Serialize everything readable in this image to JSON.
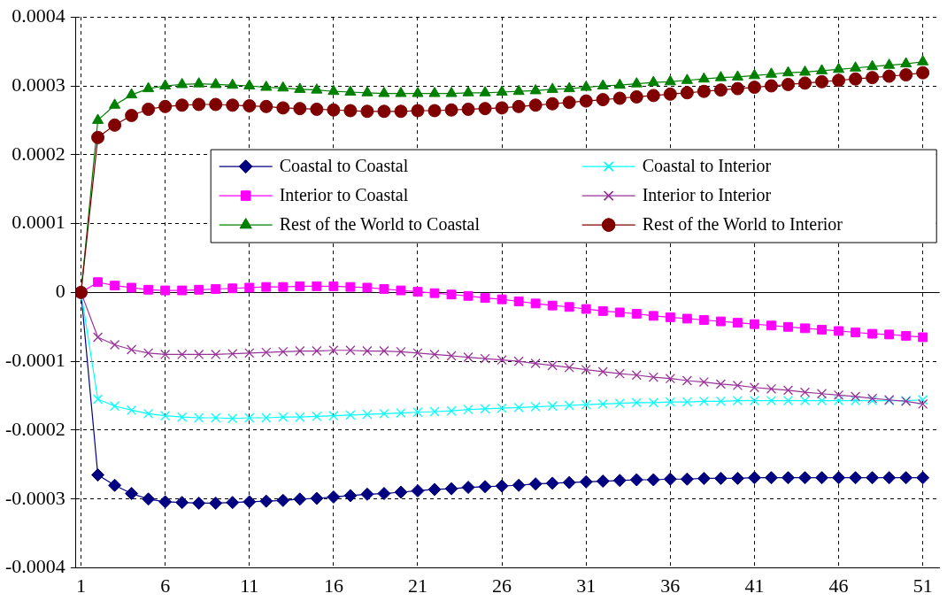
{
  "chart_data": {
    "type": "line",
    "x": [
      1,
      2,
      3,
      4,
      5,
      6,
      7,
      8,
      9,
      10,
      11,
      12,
      13,
      14,
      15,
      16,
      17,
      18,
      19,
      20,
      21,
      22,
      23,
      24,
      25,
      26,
      27,
      28,
      29,
      30,
      31,
      32,
      33,
      34,
      35,
      36,
      37,
      38,
      39,
      40,
      41,
      42,
      43,
      44,
      45,
      46,
      47,
      48,
      49,
      50,
      51
    ],
    "xlim": [
      0.7,
      52
    ],
    "xticks": [
      1,
      6,
      11,
      16,
      21,
      26,
      31,
      36,
      41,
      46,
      51
    ],
    "ylim": [
      -0.0004,
      0.0004
    ],
    "yticks": [
      -0.0004,
      -0.0003,
      -0.0002,
      -0.0001,
      0,
      0.0001,
      0.0002,
      0.0003,
      0.0004
    ],
    "grid": true,
    "legend": "top right",
    "line_style": "solid",
    "series": [
      {
        "name": "Coastal to Coastal",
        "color": "#000080",
        "marker": "diamond",
        "values": [
          0,
          -0.000265,
          -0.00028,
          -0.000292,
          -0.0003,
          -0.000304,
          -0.000305,
          -0.000306,
          -0.000306,
          -0.000305,
          -0.000304,
          -0.000303,
          -0.000302,
          -0.0003,
          -0.000299,
          -0.000297,
          -0.000295,
          -0.000293,
          -0.000292,
          -0.00029,
          -0.000288,
          -0.000286,
          -0.000285,
          -0.000283,
          -0.000282,
          -0.000281,
          -0.00028,
          -0.000278,
          -0.000277,
          -0.000276,
          -0.000275,
          -0.000274,
          -0.000273,
          -0.000272,
          -0.000272,
          -0.000271,
          -0.000271,
          -0.00027,
          -0.00027,
          -0.00027,
          -0.000269,
          -0.000269,
          -0.000269,
          -0.000269,
          -0.000269,
          -0.000269,
          -0.000269,
          -0.000269,
          -0.000269,
          -0.000269,
          -0.000269
        ]
      },
      {
        "name": "Coastal to Interior",
        "color": "#00ffff",
        "marker": "cross",
        "values": [
          0,
          -0.000155,
          -0.000165,
          -0.000171,
          -0.000176,
          -0.000179,
          -0.000181,
          -0.000182,
          -0.000182,
          -0.000183,
          -0.000182,
          -0.000182,
          -0.000181,
          -0.000181,
          -0.00018,
          -0.000179,
          -0.000178,
          -0.000177,
          -0.000176,
          -0.000175,
          -0.000174,
          -0.000173,
          -0.000172,
          -0.00017,
          -0.000169,
          -0.000168,
          -0.000167,
          -0.000166,
          -0.000165,
          -0.000164,
          -0.000163,
          -0.000162,
          -0.000161,
          -0.00016,
          -0.00016,
          -0.000159,
          -0.000159,
          -0.000158,
          -0.000158,
          -0.000157,
          -0.000157,
          -0.000157,
          -0.000157,
          -0.000157,
          -0.000157,
          -0.000157,
          -0.000157,
          -0.000157,
          -0.000157,
          -0.000157,
          -0.000156
        ]
      },
      {
        "name": "Interior to Coastal",
        "color": "#ff00ff",
        "marker": "square",
        "values": [
          0,
          1.5e-05,
          1e-05,
          7e-06,
          4e-06,
          3e-06,
          3e-06,
          4e-06,
          5e-06,
          6e-06,
          7e-06,
          8e-06,
          8e-06,
          9e-06,
          9e-06,
          9e-06,
          8e-06,
          7e-06,
          5e-06,
          3e-06,
          1e-06,
          -1e-06,
          -3e-06,
          -5e-06,
          -8e-06,
          -1e-05,
          -1.3e-05,
          -1.6e-05,
          -1.9e-05,
          -2.1e-05,
          -2.4e-05,
          -2.7e-05,
          -2.9e-05,
          -3.1e-05,
          -3.4e-05,
          -3.6e-05,
          -3.8e-05,
          -4e-05,
          -4.2e-05,
          -4.4e-05,
          -4.6e-05,
          -4.8e-05,
          -5e-05,
          -5.2e-05,
          -5.4e-05,
          -5.6e-05,
          -5.8e-05,
          -6e-05,
          -6.1e-05,
          -6.3e-05,
          -6.5e-05
        ]
      },
      {
        "name": "Interior to Interior",
        "color": "#993399",
        "marker": "cross",
        "values": [
          0,
          -6.5e-05,
          -7.6e-05,
          -8.3e-05,
          -8.8e-05,
          -9e-05,
          -9e-05,
          -9e-05,
          -9e-05,
          -8.9e-05,
          -8.8e-05,
          -8.7e-05,
          -8.6e-05,
          -8.5e-05,
          -8.5e-05,
          -8.4e-05,
          -8.4e-05,
          -8.5e-05,
          -8.5e-05,
          -8.6e-05,
          -8.8e-05,
          -9e-05,
          -9.2e-05,
          -9.4e-05,
          -9.6e-05,
          -9.8e-05,
          -0.0001,
          -0.000103,
          -0.000106,
          -0.000109,
          -0.000112,
          -0.000115,
          -0.000118,
          -0.00012,
          -0.000123,
          -0.000125,
          -0.000128,
          -0.00013,
          -0.000133,
          -0.000135,
          -0.000138,
          -0.00014,
          -0.000142,
          -0.000145,
          -0.000147,
          -0.000149,
          -0.000151,
          -0.000154,
          -0.000156,
          -0.000158,
          -0.000162
        ]
      },
      {
        "name": "Rest of the World to Coastal",
        "color": "#008000",
        "marker": "triangle",
        "values": [
          0,
          0.00025,
          0.000272,
          0.000287,
          0.000296,
          0.0003,
          0.000302,
          0.000303,
          0.000302,
          0.000301,
          0.0003,
          0.000298,
          0.000297,
          0.000295,
          0.000294,
          0.000292,
          0.000291,
          0.00029,
          0.000289,
          0.000289,
          0.000289,
          0.000289,
          0.000289,
          0.00029,
          0.00029,
          0.000291,
          0.000292,
          0.000293,
          0.000295,
          0.000296,
          0.000298,
          0.0003,
          0.000301,
          0.000303,
          0.000305,
          0.000306,
          0.000308,
          0.00031,
          0.000312,
          0.000313,
          0.000315,
          0.000317,
          0.000319,
          0.00032,
          0.000322,
          0.000324,
          0.000326,
          0.000328,
          0.00033,
          0.000332,
          0.000335
        ]
      },
      {
        "name": "Rest of the World to Interior",
        "color": "#800000",
        "marker": "circle",
        "values": [
          0,
          0.000225,
          0.000243,
          0.000257,
          0.000266,
          0.00027,
          0.000272,
          0.000273,
          0.000273,
          0.000272,
          0.000271,
          0.00027,
          0.000268,
          0.000267,
          0.000266,
          0.000265,
          0.000264,
          0.000263,
          0.000263,
          0.000263,
          0.000264,
          0.000264,
          0.000265,
          0.000266,
          0.000267,
          0.000268,
          0.00027,
          0.000272,
          0.000274,
          0.000276,
          0.000278,
          0.00028,
          0.000282,
          0.000284,
          0.000286,
          0.000288,
          0.00029,
          0.000292,
          0.000294,
          0.000296,
          0.000298,
          0.0003,
          0.000302,
          0.000304,
          0.000306,
          0.000308,
          0.00031,
          0.000312,
          0.000314,
          0.000316,
          0.000319
        ]
      }
    ]
  }
}
